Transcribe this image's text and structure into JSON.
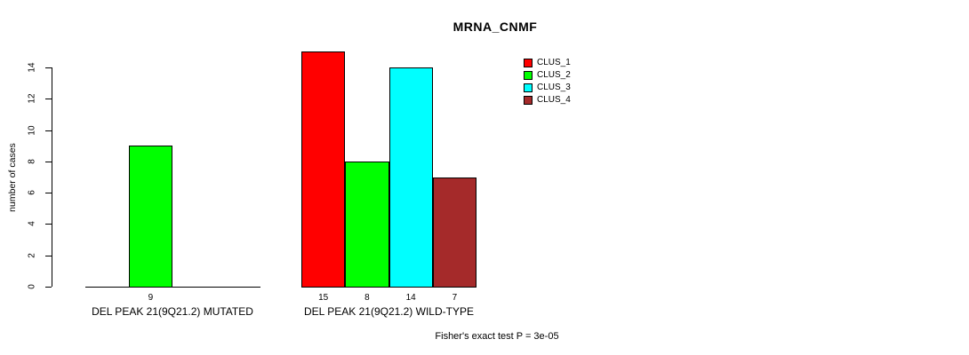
{
  "title": "MRNA_CNMF",
  "y_axis": {
    "label": "number of cases",
    "ticks": [
      0,
      2,
      4,
      6,
      8,
      10,
      12,
      14
    ]
  },
  "legend": {
    "entries": [
      {
        "label": "CLUS_1",
        "color": "#FF0000"
      },
      {
        "label": "CLUS_2",
        "color": "#00FF00"
      },
      {
        "label": "CLUS_3",
        "color": "#00FFFF"
      },
      {
        "label": "CLUS_4",
        "color": "#A52A2A"
      }
    ]
  },
  "footer": {
    "text": "Fisher's exact test P = 3e-05"
  },
  "chart_data": {
    "type": "bar",
    "title": "MRNA_CNMF",
    "xlabel": "",
    "ylabel": "number of cases",
    "ylim": [
      0,
      15
    ],
    "yticks": [
      0,
      2,
      4,
      6,
      8,
      10,
      12,
      14
    ],
    "grid": false,
    "legend_position": "top-right",
    "categories": [
      "DEL PEAK 21(9Q21.2) MUTATED",
      "DEL PEAK 21(9Q21.2) WILD-TYPE"
    ],
    "series": [
      {
        "name": "CLUS_1",
        "color": "#FF0000",
        "values": [
          0,
          15
        ]
      },
      {
        "name": "CLUS_2",
        "color": "#00FF00",
        "values": [
          9,
          8
        ]
      },
      {
        "name": "CLUS_3",
        "color": "#00FFFF",
        "values": [
          0,
          14
        ]
      },
      {
        "name": "CLUS_4",
        "color": "#A52A2A",
        "values": [
          0,
          7
        ]
      }
    ],
    "bar_value_labels": {
      "DEL PEAK 21(9Q21.2) MUTATED": [
        null,
        9,
        null,
        null
      ],
      "DEL PEAK 21(9Q21.2) WILD-TYPE": [
        15,
        8,
        14,
        7
      ]
    },
    "annotation": "Fisher's exact test P = 3e-05"
  }
}
